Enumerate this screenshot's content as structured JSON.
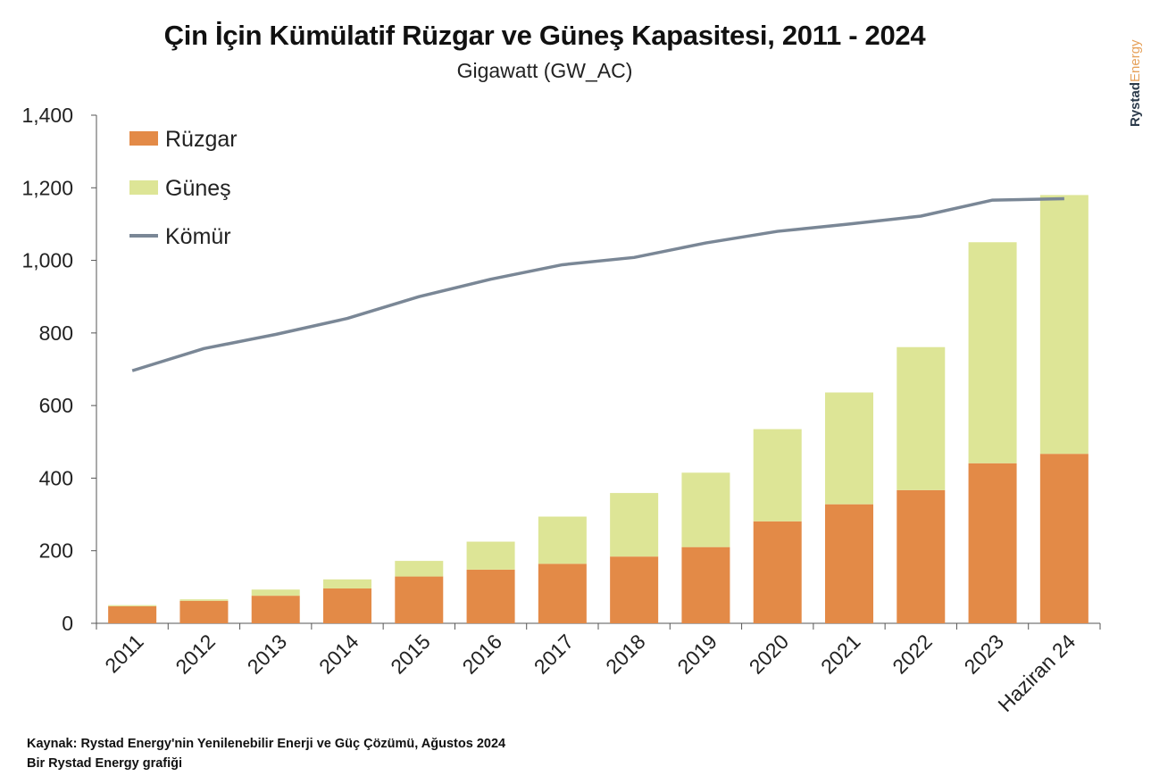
{
  "header": {
    "title": "Çin İçin Kümülatif Rüzgar ve Güneş Kapasitesi, 2011 - 2024",
    "subtitle": "Gigawatt (GW_AC)",
    "brand_bold": "Rystad",
    "brand_light": "Energy"
  },
  "footer": {
    "source": "Kaynak: Rystad Energy'nin Yenilenebilir Enerji ve Güç Çözümü, Ağustos 2024",
    "credit": "Bir Rystad Energy grafiği"
  },
  "colors": {
    "wind": "#e38a47",
    "solar": "#dde596",
    "coal": "#7a8796",
    "axis": "#555555",
    "brand_bold": "#2b3a4a",
    "brand_light": "#e6a15a"
  },
  "chart_data": {
    "type": "bar",
    "stacked": true,
    "categories": [
      "2011",
      "2012",
      "2013",
      "2014",
      "2015",
      "2016",
      "2017",
      "2018",
      "2019",
      "2020",
      "2021",
      "2022",
      "2023",
      "Haziran 24"
    ],
    "series": [
      {
        "name": "Rüzgar",
        "type": "bar",
        "color": "#e38a47",
        "values": [
          47,
          62,
          76,
          96,
          129,
          148,
          164,
          184,
          210,
          281,
          328,
          367,
          441,
          467
        ]
      },
      {
        "name": "Güneş",
        "type": "bar",
        "color": "#dde596",
        "values": [
          3,
          4,
          17,
          25,
          43,
          77,
          130,
          175,
          205,
          254,
          308,
          394,
          609,
          713
        ]
      },
      {
        "name": "Kömür",
        "type": "line",
        "color": "#7a8796",
        "values": [
          696,
          757,
          796,
          840,
          900,
          948,
          988,
          1008,
          1048,
          1080,
          1100,
          1122,
          1166,
          1170
        ]
      }
    ],
    "ylim": [
      0,
      1400
    ],
    "yticks": [
      "0",
      "200",
      "400",
      "600",
      "800",
      "1,000",
      "1,200",
      "1,400"
    ],
    "ytick_values": [
      0,
      200,
      400,
      600,
      800,
      1000,
      1200,
      1400
    ],
    "grid": false,
    "legend_position": "top-left"
  }
}
